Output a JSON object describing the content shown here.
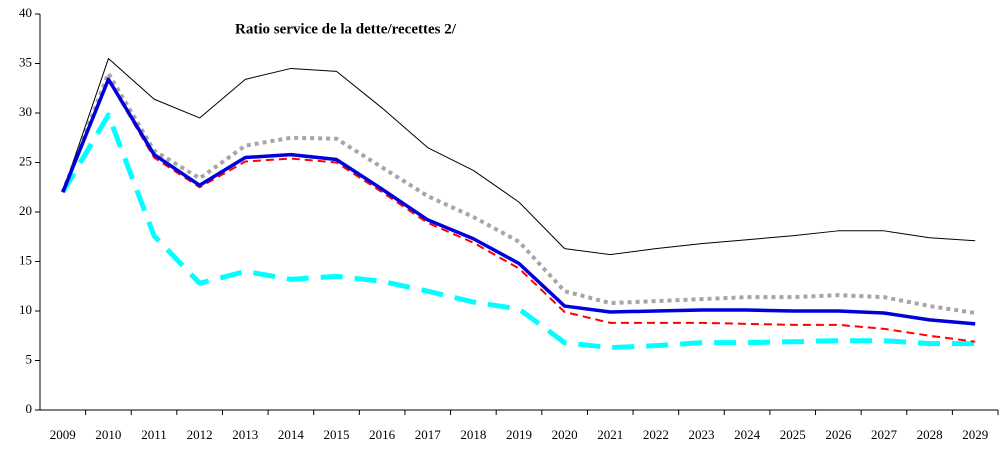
{
  "chart_data": {
    "type": "line",
    "title": "Ratio service de la dette/recettes 2/",
    "categories": [
      "2009",
      "2010",
      "2011",
      "2012",
      "2013",
      "2014",
      "2015",
      "2016",
      "2017",
      "2018",
      "2019",
      "2020",
      "2021",
      "2022",
      "2023",
      "2024",
      "2025",
      "2026",
      "2027",
      "2028",
      "2029"
    ],
    "series": [
      {
        "color": "#000000",
        "values": [
          22,
          35.5,
          31.4,
          29.5,
          33.4,
          34.5,
          34.2,
          30.5,
          26.5,
          24.2,
          21,
          16.3,
          15.7,
          16.3,
          16.8,
          17.2,
          17.6,
          18.1,
          18.1,
          17.4,
          17.1
        ]
      },
      {
        "color": "#a6a6a6",
        "values": [
          22,
          34,
          26.2,
          23.4,
          26.7,
          27.5,
          27.4,
          24.5,
          21.6,
          19.5,
          17,
          12,
          10.8,
          11,
          11.2,
          11.4,
          11.4,
          11.6,
          11.4,
          10.5,
          9.8
        ]
      },
      {
        "color": "#0000dd",
        "values": [
          22,
          33.4,
          25.8,
          22.7,
          25.5,
          25.8,
          25.3,
          22.3,
          19.2,
          17.3,
          14.8,
          10.5,
          9.9,
          10,
          10.1,
          10.1,
          10,
          10,
          9.8,
          9.1,
          8.7
        ]
      },
      {
        "color": "#ff0000",
        "values": [
          22,
          33.3,
          25.5,
          22.5,
          25.1,
          25.4,
          25,
          22,
          18.9,
          16.9,
          14.3,
          9.9,
          8.8,
          8.8,
          8.8,
          8.7,
          8.6,
          8.6,
          8.2,
          7.5,
          6.9
        ]
      },
      {
        "color": "#00ffff",
        "values": [
          22,
          29.8,
          17.6,
          12.8,
          14,
          13.2,
          13.5,
          13,
          12,
          10.9,
          10.2,
          6.8,
          6.3,
          6.5,
          6.8,
          6.8,
          6.9,
          7,
          7,
          6.7,
          6.7
        ]
      }
    ],
    "ylim": [
      0,
      40
    ],
    "yticks": [
      0,
      5,
      10,
      15,
      20,
      25,
      30,
      35,
      40
    ]
  }
}
